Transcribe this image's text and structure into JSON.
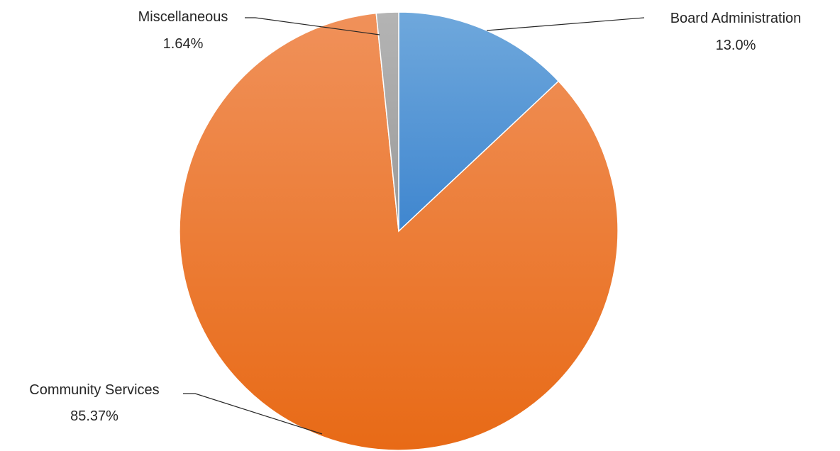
{
  "chart_data": {
    "type": "pie",
    "title": "",
    "slices": [
      {
        "label": "Board Administration",
        "value_label": "13.0%",
        "value": 13.0,
        "color": "#5b9bd5"
      },
      {
        "label": "Community Services",
        "value_label": "85.37%",
        "value": 85.37,
        "color": "#ed7d31"
      },
      {
        "label": "Miscellaneous",
        "value_label": "1.64%",
        "value": 1.64,
        "color": "#a5a5a5"
      }
    ],
    "legend": "none",
    "data_labels": "outside-with-leader-lines"
  }
}
